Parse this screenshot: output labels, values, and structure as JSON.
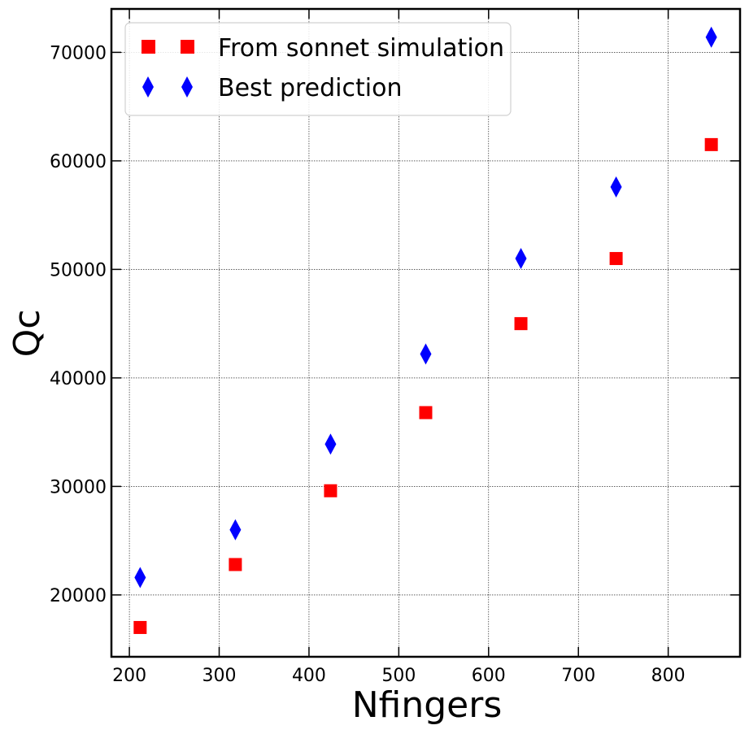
{
  "chart_data": {
    "type": "scatter",
    "xlabel": "Nfingers",
    "ylabel": "Qc",
    "xlim": [
      180,
      880
    ],
    "ylim": [
      14300,
      74000
    ],
    "x_ticks": [
      200,
      300,
      400,
      500,
      600,
      700,
      800
    ],
    "y_ticks": [
      20000,
      30000,
      40000,
      50000,
      60000,
      70000
    ],
    "grid": true,
    "legend_position": "top-left",
    "series": [
      {
        "name": "From sonnet simulation",
        "marker": "square",
        "color": "#ff0000",
        "x": [
          212,
          318,
          424,
          530,
          636,
          742,
          848
        ],
        "y": [
          17000,
          22800,
          29600,
          36800,
          45000,
          51000,
          61500
        ]
      },
      {
        "name": "Best prediction",
        "marker": "diamond",
        "color": "#0000ff",
        "x": [
          212,
          318,
          424,
          530,
          636,
          742,
          848
        ],
        "y": [
          21600,
          26000,
          33900,
          42200,
          51000,
          57600,
          71400
        ]
      }
    ]
  }
}
